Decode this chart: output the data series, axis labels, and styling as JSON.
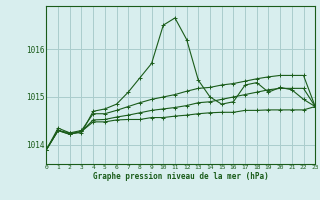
{
  "title": "Graphe pression niveau de la mer (hPa)",
  "background_color": "#d8eeee",
  "grid_color": "#aacccc",
  "line_color": "#1a5c1a",
  "xlim": [
    0,
    23
  ],
  "ylim": [
    1013.6,
    1016.9
  ],
  "yticks": [
    1014,
    1015,
    1016
  ],
  "xticks": [
    0,
    1,
    2,
    3,
    4,
    5,
    6,
    7,
    8,
    9,
    10,
    11,
    12,
    13,
    14,
    15,
    16,
    17,
    18,
    19,
    20,
    21,
    22,
    23
  ],
  "series": [
    [
      1013.9,
      1014.35,
      1014.25,
      1014.25,
      1014.7,
      1014.75,
      1014.85,
      1015.1,
      1015.4,
      1015.7,
      1016.5,
      1016.65,
      1016.2,
      1015.35,
      1015.0,
      1014.85,
      1014.9,
      1015.25,
      1015.3,
      1015.1,
      1015.2,
      1015.15,
      1014.95,
      1014.8
    ],
    [
      1013.9,
      1014.3,
      1014.25,
      1014.3,
      1014.65,
      1014.65,
      1014.72,
      1014.8,
      1014.88,
      1014.95,
      1015.0,
      1015.05,
      1015.12,
      1015.18,
      1015.2,
      1015.25,
      1015.28,
      1015.33,
      1015.38,
      1015.42,
      1015.45,
      1015.45,
      1015.45,
      1014.8
    ],
    [
      1013.9,
      1014.3,
      1014.22,
      1014.28,
      1014.52,
      1014.53,
      1014.58,
      1014.62,
      1014.67,
      1014.72,
      1014.75,
      1014.78,
      1014.82,
      1014.88,
      1014.9,
      1014.95,
      1015.0,
      1015.05,
      1015.1,
      1015.15,
      1015.18,
      1015.18,
      1015.18,
      1014.8
    ],
    [
      1013.9,
      1014.3,
      1014.22,
      1014.28,
      1014.48,
      1014.48,
      1014.52,
      1014.53,
      1014.53,
      1014.57,
      1014.57,
      1014.6,
      1014.62,
      1014.65,
      1014.67,
      1014.68,
      1014.68,
      1014.72,
      1014.72,
      1014.73,
      1014.73,
      1014.73,
      1014.73,
      1014.8
    ]
  ]
}
